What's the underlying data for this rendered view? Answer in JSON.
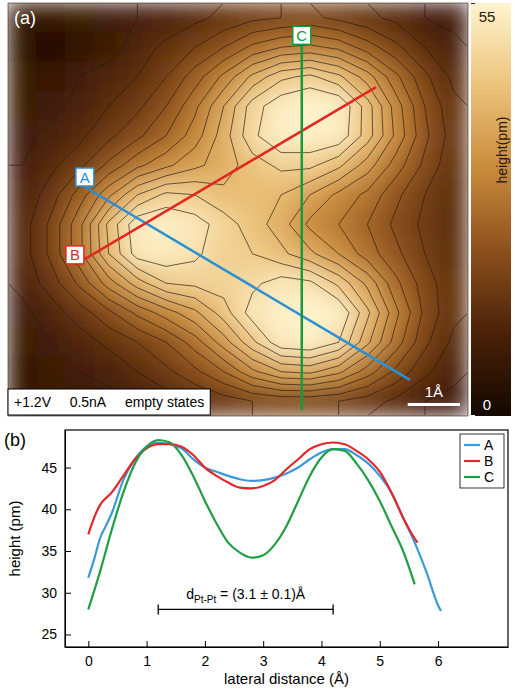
{
  "chart_data": [
    {
      "type": "heatmap",
      "panel_label": "(a)",
      "xlim": [
        0,
        8.8
      ],
      "ylim": [
        0,
        7.9
      ],
      "tick_labels": false,
      "z": [
        [
          7,
          7,
          8,
          9,
          10,
          11,
          13,
          15,
          17,
          18,
          19,
          17,
          15,
          13,
          10,
          9
        ],
        [
          5,
          3,
          5,
          8,
          12,
          15,
          18,
          22,
          27,
          30,
          31,
          29,
          24,
          19,
          14,
          11
        ],
        [
          8,
          7,
          10,
          12,
          14,
          18,
          24,
          31,
          39,
          45,
          47,
          43,
          36,
          27,
          19,
          13
        ],
        [
          8,
          9,
          11,
          14,
          17,
          22,
          29,
          38,
          48,
          53,
          55,
          54,
          44,
          32,
          22,
          15
        ],
        [
          9,
          11,
          13,
          17,
          21,
          26,
          32,
          40,
          49,
          54,
          54,
          53,
          44,
          33,
          23,
          16
        ],
        [
          10,
          13,
          17,
          23,
          29,
          33,
          37,
          40,
          44,
          47,
          47,
          43,
          36,
          28,
          21,
          15
        ],
        [
          11,
          16,
          24,
          33,
          42,
          47,
          46,
          43,
          43,
          42,
          38,
          33,
          29,
          23,
          18,
          14
        ],
        [
          12,
          19,
          29,
          43,
          53,
          54,
          52,
          48,
          44,
          40,
          33,
          30,
          26,
          21,
          17,
          14
        ],
        [
          12,
          19,
          29,
          42,
          52,
          53,
          51,
          47,
          46,
          43,
          39,
          34,
          28,
          23,
          18,
          14
        ],
        [
          11,
          16,
          23,
          32,
          40,
          46,
          47,
          48,
          49,
          52,
          51,
          45,
          37,
          27,
          20,
          15
        ],
        [
          9,
          12,
          16,
          21,
          27,
          32,
          37,
          44,
          52,
          54,
          55,
          54,
          43,
          31,
          21,
          15
        ],
        [
          8,
          10,
          12,
          15,
          18,
          22,
          28,
          36,
          45,
          53,
          54,
          50,
          39,
          28,
          19,
          13
        ],
        [
          7,
          8,
          10,
          11,
          14,
          17,
          21,
          26,
          33,
          38,
          39,
          35,
          28,
          21,
          15,
          11
        ],
        [
          7,
          8,
          8,
          9,
          10,
          12,
          14,
          16,
          18,
          19,
          19,
          18,
          16,
          13,
          10,
          9
        ]
      ],
      "colorbar": {
        "label": "height(pm)",
        "range": [
          0,
          55
        ],
        "ticks": [
          0,
          55
        ]
      },
      "contour_levels": [
        10,
        14,
        18,
        22,
        26,
        30,
        34,
        38,
        42,
        46,
        50
      ],
      "scan_lines": [
        {
          "name": "A",
          "color": "#2b8fd6",
          "x": [
            1.47,
            7.69
          ],
          "y": [
            4.38,
            0.69
          ]
        },
        {
          "name": "B",
          "color": "#e3261f",
          "x": [
            1.28,
            7.04
          ],
          "y": [
            2.89,
            6.29
          ]
        },
        {
          "name": "C",
          "color": "#179a3c",
          "x": [
            5.62,
            5.62
          ],
          "y": [
            7.09,
            0.11
          ]
        }
      ],
      "annotations": [
        "+1.2V",
        "0.5nA",
        "empty states"
      ],
      "scale_bar": {
        "length": 1,
        "label": "1Å"
      }
    },
    {
      "type": "line",
      "panel_label": "(b)",
      "x_label": "lateral distance (Å)",
      "y_label": "height (pm)",
      "xlim": [
        -0.4,
        7.2
      ],
      "ylim": [
        23.5,
        49.5
      ],
      "xticks": [
        0,
        1,
        2,
        3,
        4,
        5,
        6
      ],
      "yticks": [
        25,
        30,
        35,
        40,
        45
      ],
      "legend": "upper right",
      "series": [
        {
          "name": "A",
          "color": "#3a9ad9",
          "x": [
            0,
            0.1,
            0.2,
            0.3,
            0.4,
            0.6,
            0.8,
            1.0,
            1.2,
            1.4,
            1.6,
            1.8,
            2.0,
            2.2,
            2.4,
            2.6,
            2.8,
            3.0,
            3.2,
            3.4,
            3.6,
            3.8,
            4.0,
            4.2,
            4.4,
            4.6,
            4.8,
            5.0,
            5.2,
            5.4,
            5.6,
            5.8,
            6.0,
            6.05
          ],
          "values": [
            31.8,
            34,
            36.5,
            38,
            39.5,
            43.5,
            46,
            47.5,
            48,
            47.8,
            47.3,
            46,
            45,
            44.5,
            44,
            43.6,
            43.4,
            43.5,
            43.8,
            44.3,
            45,
            46,
            46.8,
            47.2,
            47.2,
            46.5,
            45.5,
            44,
            42,
            39,
            36,
            32.5,
            28.5,
            27.8
          ]
        },
        {
          "name": "B",
          "color": "#e5262a",
          "x": [
            0,
            0.1,
            0.2,
            0.4,
            0.6,
            0.8,
            1.0,
            1.2,
            1.4,
            1.6,
            1.8,
            2.0,
            2.2,
            2.4,
            2.6,
            2.8,
            3.0,
            3.2,
            3.4,
            3.6,
            3.8,
            4.0,
            4.2,
            4.4,
            4.6,
            4.8,
            5.0,
            5.2,
            5.4,
            5.6,
            5.65
          ],
          "values": [
            37,
            39,
            40.5,
            42,
            44,
            46,
            47.3,
            47.8,
            47.8,
            47.5,
            46.5,
            45,
            44,
            43.2,
            42.6,
            42.5,
            42.8,
            43.5,
            44.8,
            46,
            47.2,
            47.8,
            48,
            47.8,
            47,
            46,
            44.5,
            42,
            39,
            36.5,
            36
          ]
        },
        {
          "name": "C",
          "color": "#1f9e45",
          "x": [
            0,
            0.2,
            0.4,
            0.6,
            0.8,
            1.0,
            1.2,
            1.4,
            1.6,
            1.8,
            2.0,
            2.2,
            2.4,
            2.6,
            2.8,
            3.0,
            3.2,
            3.4,
            3.6,
            3.8,
            4.0,
            4.2,
            4.4,
            4.6,
            4.8,
            5.0,
            5.2,
            5.4,
            5.6
          ],
          "values": [
            28,
            32.5,
            37.5,
            42,
            45.5,
            47.5,
            48.3,
            48,
            46.5,
            44,
            41,
            38.3,
            36,
            34.8,
            34.2,
            34.5,
            35.8,
            38,
            41,
            44,
            46.2,
            47.2,
            47,
            45.5,
            43.5,
            41,
            38,
            35,
            31
          ]
        }
      ],
      "annotation": {
        "text": "d",
        "subscript": "Pt-Pt",
        "text_after": " = (3.1 ± 0.1)Å",
        "x": [
          1.2,
          4.2
        ],
        "y": 28
      }
    }
  ]
}
